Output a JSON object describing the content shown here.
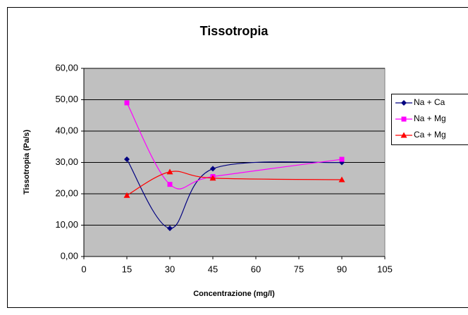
{
  "chart_data": {
    "type": "line",
    "title": "Tissotropia",
    "x_label": "Concentrazione (mg/l)",
    "y_label": "Tissotropia (Pa/s)",
    "x": [
      15,
      30,
      45,
      90
    ],
    "series": [
      {
        "name": "Na + Ca",
        "color": "#000080",
        "marker": "diamond",
        "values": [
          31,
          9,
          28,
          30
        ]
      },
      {
        "name": "Na + Mg",
        "color": "#ff00ff",
        "marker": "square",
        "values": [
          49,
          23,
          25.5,
          31
        ]
      },
      {
        "name": "Ca + Mg",
        "color": "#ff0000",
        "marker": "triangle",
        "values": [
          19.5,
          27,
          25,
          24.5
        ]
      }
    ],
    "xlim": [
      0,
      105
    ],
    "xticks": [
      0,
      15,
      30,
      45,
      60,
      75,
      90,
      105
    ],
    "ylim": [
      0,
      60
    ],
    "yticks": [
      {
        "value": 0,
        "label": "0,00"
      },
      {
        "value": 10,
        "label": "10,00"
      },
      {
        "value": 20,
        "label": "20,00"
      },
      {
        "value": 30,
        "label": "30,00"
      },
      {
        "value": 40,
        "label": "40,00"
      },
      {
        "value": 50,
        "label": "50,00"
      },
      {
        "value": 60,
        "label": "60,00"
      }
    ],
    "grid": true,
    "smooth": true,
    "legend": "right"
  }
}
